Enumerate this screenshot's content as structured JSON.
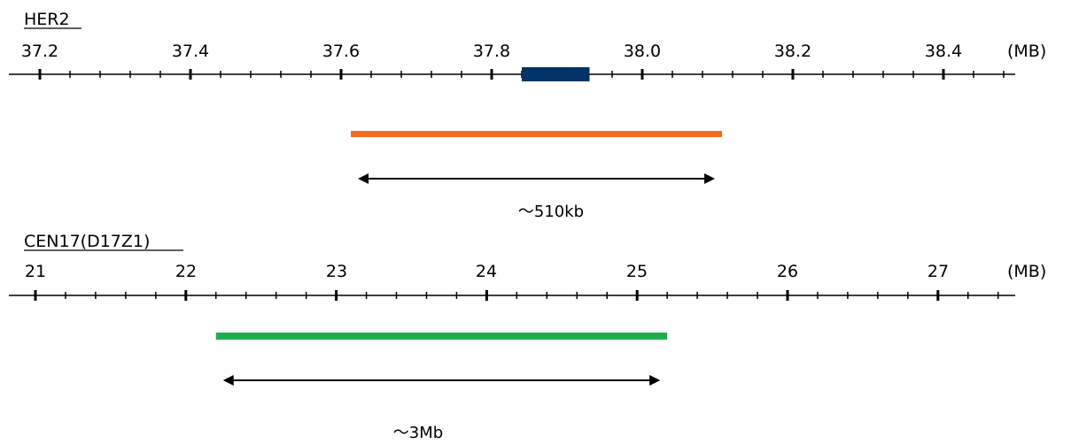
{
  "colors": {
    "axis": "#000000",
    "gene_marker": "#003366",
    "her2_probe": "#f26b1d",
    "cen17_probe": "#1fae4b"
  },
  "panels": [
    {
      "id": "her2",
      "title": "HER2",
      "unit_label": "(MB)",
      "ticks": [
        "37.2",
        "37.4",
        "37.6",
        "37.8",
        "38.0",
        "38.2",
        "38.4"
      ],
      "tick_values": [
        37.2,
        37.4,
        37.6,
        37.8,
        38.0,
        38.2,
        38.4
      ],
      "gene_marker": {
        "start": 37.84,
        "end": 37.93
      },
      "probe": {
        "start": 37.613,
        "end": 38.106,
        "color_key": "her2_probe"
      },
      "span": {
        "start": 37.613,
        "end": 38.106,
        "label": "～510kb"
      }
    },
    {
      "id": "cen17",
      "title": "CEN17(D17Z1)",
      "unit_label": "(MB)",
      "ticks": [
        "21",
        "22",
        "23",
        "24",
        "25",
        "26",
        "27"
      ],
      "tick_values": [
        21,
        22,
        23,
        24,
        25,
        26,
        27
      ],
      "gene_marker": null,
      "probe": {
        "start": 22.2,
        "end": 25.2,
        "color_key": "cen17_probe"
      },
      "span": {
        "start": 22.2,
        "end": 25.2,
        "label": "～3Mb"
      }
    }
  ]
}
